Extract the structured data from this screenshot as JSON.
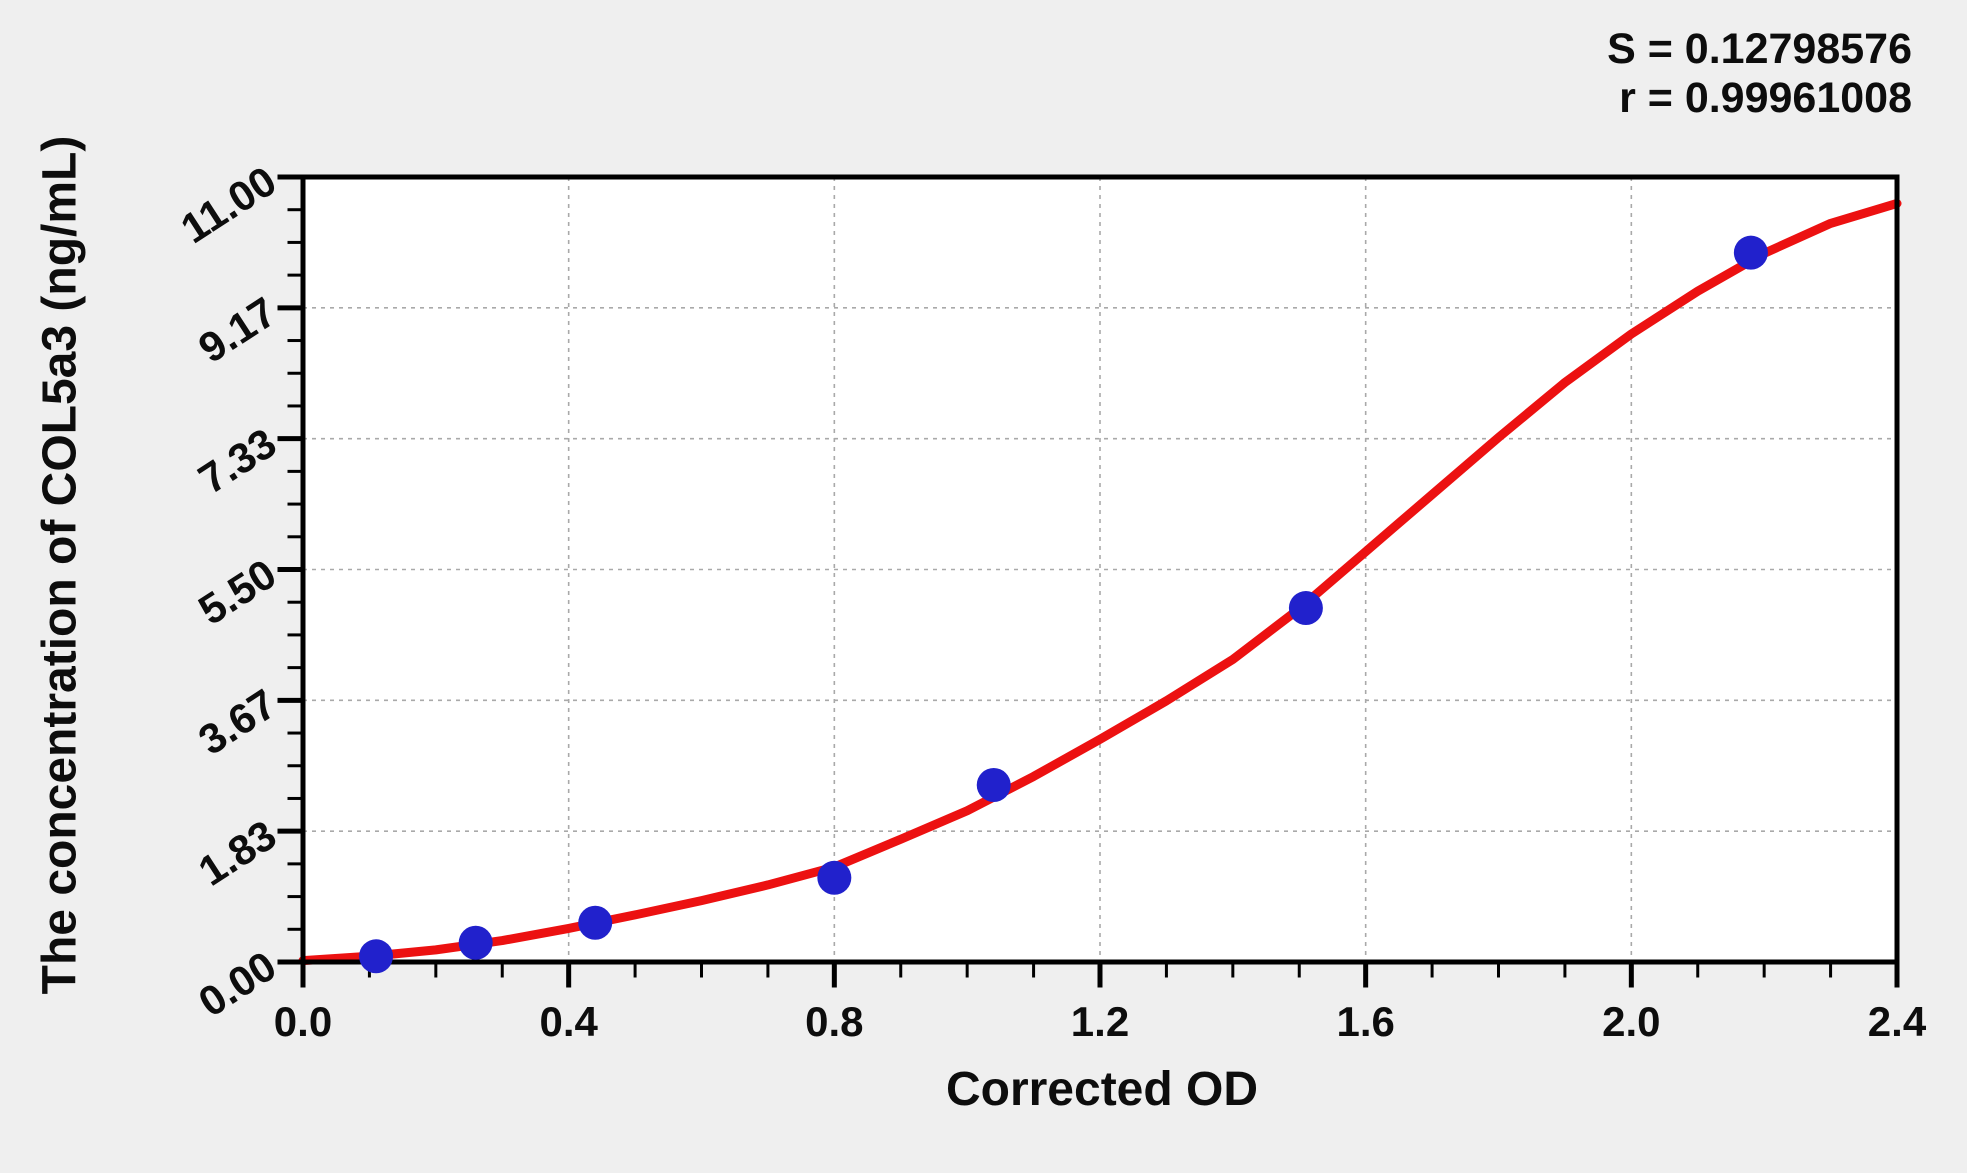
{
  "annotations": {
    "s_line": "S = 0.12798576",
    "r_line": "r = 0.99961008"
  },
  "chart_data": {
    "type": "scatter",
    "title": "",
    "xlabel": "Corrected OD",
    "ylabel": "The concentration of COL5a3 (ng/mL)",
    "xlim": [
      0,
      2.4
    ],
    "ylim": [
      0,
      11
    ],
    "grid": true,
    "grid_style": "dashed",
    "legend": "none",
    "stats": {
      "S": 0.12798576,
      "r": 0.99961008
    },
    "x_ticks": {
      "majors": [
        {
          "v": 0.0,
          "label": "0.0"
        },
        {
          "v": 0.4,
          "label": "0.4"
        },
        {
          "v": 0.8,
          "label": "0.8"
        },
        {
          "v": 1.2,
          "label": "1.2"
        },
        {
          "v": 1.6,
          "label": "1.6"
        },
        {
          "v": 2.0,
          "label": "2.0"
        },
        {
          "v": 2.4,
          "label": "2.4"
        }
      ],
      "minors_between": 3
    },
    "y_ticks": {
      "majors": [
        {
          "v": 0.0,
          "label": "0.00"
        },
        {
          "v": 1.8333333,
          "label": "1.83"
        },
        {
          "v": 3.6666667,
          "label": "3.67"
        },
        {
          "v": 5.5,
          "label": "5.50"
        },
        {
          "v": 7.3333333,
          "label": "7.33"
        },
        {
          "v": 9.1666667,
          "label": "9.17"
        },
        {
          "v": 11.0,
          "label": "11.00"
        }
      ],
      "minors_between": 3
    },
    "points": [
      {
        "x": 0.11,
        "y": 0.08
      },
      {
        "x": 0.26,
        "y": 0.27
      },
      {
        "x": 0.44,
        "y": 0.55
      },
      {
        "x": 0.8,
        "y": 1.18
      },
      {
        "x": 1.04,
        "y": 2.48
      },
      {
        "x": 1.51,
        "y": 4.96
      },
      {
        "x": 2.18,
        "y": 9.94
      }
    ],
    "fit_curve": [
      [
        0.0,
        0.02
      ],
      [
        0.1,
        0.08
      ],
      [
        0.2,
        0.17
      ],
      [
        0.3,
        0.3
      ],
      [
        0.4,
        0.47
      ],
      [
        0.5,
        0.66
      ],
      [
        0.6,
        0.86
      ],
      [
        0.7,
        1.08
      ],
      [
        0.8,
        1.33
      ],
      [
        0.9,
        1.72
      ],
      [
        1.0,
        2.12
      ],
      [
        1.1,
        2.6
      ],
      [
        1.2,
        3.12
      ],
      [
        1.3,
        3.66
      ],
      [
        1.4,
        4.24
      ],
      [
        1.5,
        4.95
      ],
      [
        1.6,
        5.75
      ],
      [
        1.7,
        6.55
      ],
      [
        1.8,
        7.35
      ],
      [
        1.9,
        8.12
      ],
      [
        2.0,
        8.8
      ],
      [
        2.1,
        9.4
      ],
      [
        2.2,
        9.93
      ],
      [
        2.3,
        10.35
      ],
      [
        2.4,
        10.63
      ]
    ],
    "colors": {
      "curve": "#ec1111",
      "points": "#2121cc",
      "grid": "#a9a9a9",
      "frame": "#000000",
      "plot_bg": "#ffffff",
      "page_bg": "#efefef",
      "text": "#0d0d0d"
    }
  }
}
